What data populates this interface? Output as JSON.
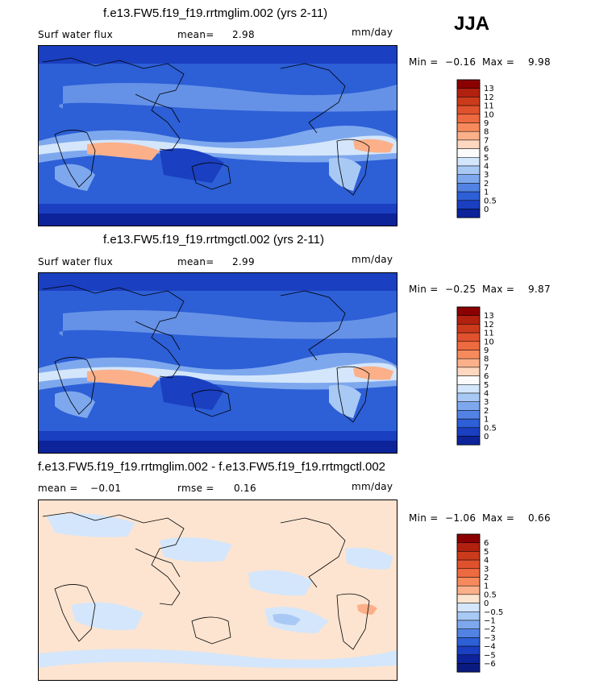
{
  "season": "JJA",
  "panels": [
    {
      "title": "f.e13.FW5.f19_f19.rrtmglim.002 (yrs 2-11)",
      "left_label": "Surf water flux",
      "stat1_label": "mean=",
      "stat1_value": "2.98",
      "stat2_label": "",
      "stat2_value": "",
      "units": "mm/day",
      "min_label": "Min =",
      "min_value": "−0.16",
      "max_label": "Max =",
      "max_value": "9.98",
      "colorbar": {
        "labels": [
          "13",
          "12",
          "11",
          "10",
          "9",
          "8",
          "7",
          "6",
          "5",
          "4",
          "3",
          "2",
          "1",
          "0.5",
          "0"
        ],
        "colors": [
          "#8b0000",
          "#b22010",
          "#cc3a1c",
          "#e0522e",
          "#ee6a40",
          "#f78a5c",
          "#fbb08a",
          "#fdd7bf",
          "#fbfbfb",
          "#d4e6fb",
          "#a9c9f5",
          "#7ea8ee",
          "#5283e4",
          "#2d5fd6",
          "#1a3fc0",
          "#0c239a"
        ]
      }
    },
    {
      "title": "f.e13.FW5.f19_f19.rrtmgctl.002 (yrs 2-11)",
      "left_label": "Surf water flux",
      "stat1_label": "mean=",
      "stat1_value": "2.99",
      "stat2_label": "",
      "stat2_value": "",
      "units": "mm/day",
      "min_label": "Min =",
      "min_value": "−0.25",
      "max_label": "Max =",
      "max_value": "9.87",
      "colorbar": {
        "labels": [
          "13",
          "12",
          "11",
          "10",
          "9",
          "8",
          "7",
          "6",
          "5",
          "4",
          "3",
          "2",
          "1",
          "0.5",
          "0"
        ],
        "colors": [
          "#8b0000",
          "#b22010",
          "#cc3a1c",
          "#e0522e",
          "#ee6a40",
          "#f78a5c",
          "#fbb08a",
          "#fdd7bf",
          "#fbfbfb",
          "#d4e6fb",
          "#a9c9f5",
          "#7ea8ee",
          "#5283e4",
          "#2d5fd6",
          "#1a3fc0",
          "#0c239a"
        ]
      }
    },
    {
      "title": "f.e13.FW5.f19_f19.rrtmglim.002 - f.e13.FW5.f19_f19.rrtmgctl.002",
      "left_label": "",
      "stat1_label": "mean =",
      "stat1_value": "−0.01",
      "stat2_label": "rmse =",
      "stat2_value": "0.16",
      "units": "mm/day",
      "min_label": "Min =",
      "min_value": "−1.06",
      "max_label": "Max =",
      "max_value": "0.66",
      "colorbar": {
        "labels": [
          "6",
          "5",
          "4",
          "3",
          "2",
          "1",
          "0.5",
          "0",
          "−0.5",
          "−1",
          "−2",
          "−3",
          "−4",
          "−5",
          "−6"
        ],
        "colors": [
          "#8b0000",
          "#b22010",
          "#cc3a1c",
          "#e0522e",
          "#ee6a40",
          "#f78a5c",
          "#fbb08a",
          "#fde4d0",
          "#d4e6fb",
          "#a9c9f5",
          "#7ea8ee",
          "#5283e4",
          "#2d5fd6",
          "#1a3fc0",
          "#0c239a",
          "#0a1a80"
        ]
      }
    }
  ]
}
